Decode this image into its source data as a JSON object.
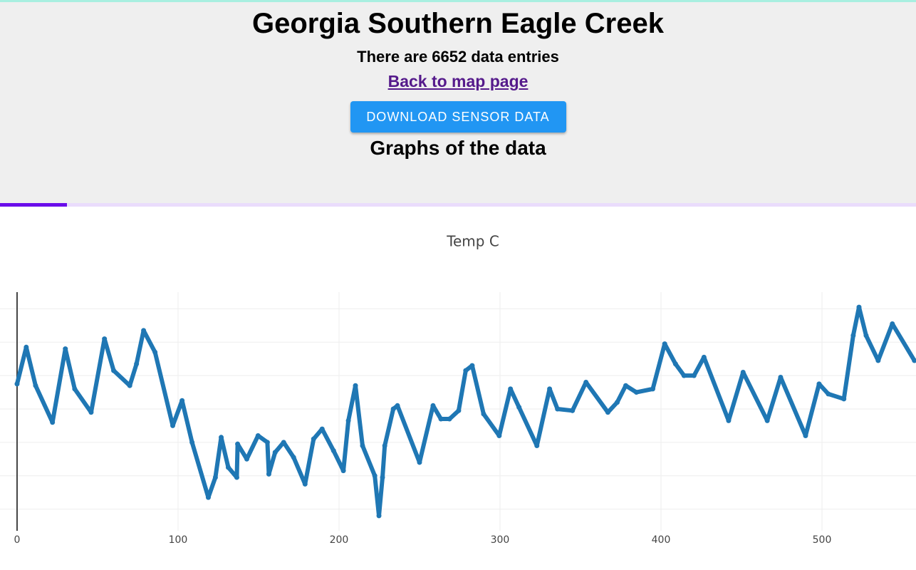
{
  "header": {
    "title": "Georgia Southern Eagle Creek",
    "entries": "There are 6652 data entries",
    "link": "Back to map page",
    "button": "DOWNLOAD SENSOR DATA",
    "graphs_heading": "Graphs of the data"
  },
  "chart_data": {
    "type": "line",
    "title": "Temp C",
    "x": [
      0,
      5.7,
      11.5,
      22,
      30,
      35.8,
      46,
      54.3,
      60,
      70,
      74.2,
      78.6,
      85.7,
      96.7,
      102.5,
      108.7,
      118.8,
      123.2,
      126.8,
      131.2,
      136.5,
      137,
      142.7,
      149.7,
      155.5,
      156.4,
      160.3,
      165.6,
      171.8,
      178.9,
      184.2,
      189.5,
      196.6,
      202.7,
      205.8,
      210.2,
      214.6,
      222.2,
      224.8,
      227,
      228.4,
      233.7,
      236.3,
      250,
      258.4,
      263.3,
      268.6,
      274.3,
      278.7,
      282.7,
      289.8,
      299.5,
      306.5,
      311.8,
      322.9,
      330.8,
      335.7,
      345,
      353.4,
      367,
      372.8,
      378.1,
      384.7,
      394.9,
      402.3,
      409,
      414.3,
      420.5,
      426.7,
      442,
      451,
      466,
      474.3,
      489.8,
      498.2,
      503.9,
      513.6,
      519.4,
      523,
      527.4,
      534.9,
      543.7,
      557.4
    ],
    "series": [
      {
        "name": "Temp C",
        "color": "#1f77b4",
        "values": [
          21.5,
          23.7,
          21.4,
          19.2,
          23.6,
          21.2,
          19.8,
          24.2,
          22.3,
          21.4,
          22.7,
          24.7,
          23.4,
          19.0,
          20.5,
          18.0,
          14.7,
          15.9,
          18.3,
          16.5,
          15.9,
          17.9,
          17.0,
          18.4,
          18.0,
          16.1,
          17.4,
          18.0,
          17.1,
          15.5,
          18.2,
          18.8,
          17.5,
          16.3,
          19.3,
          21.4,
          17.8,
          16.0,
          13.6,
          15.9,
          17.8,
          20.0,
          20.2,
          16.8,
          20.2,
          19.4,
          19.4,
          19.9,
          22.3,
          22.6,
          19.7,
          18.4,
          21.2,
          20.1,
          17.8,
          21.2,
          20.0,
          19.9,
          21.6,
          19.8,
          20.4,
          21.4,
          21.0,
          21.2,
          23.9,
          22.7,
          22.0,
          22.0,
          23.1,
          19.3,
          22.2,
          19.3,
          21.9,
          18.4,
          21.5,
          20.9,
          20.6,
          24.4,
          26.1,
          24.4,
          22.9,
          25.1,
          22.9
        ]
      }
    ],
    "xlim": [
      -10.6,
      558.4
    ],
    "xticks": [
      0,
      100,
      200,
      300,
      400,
      500
    ],
    "ylim": [
      12.7,
      27.0
    ],
    "yticks": [
      14,
      16,
      18,
      20,
      22,
      24,
      26
    ],
    "grid": true
  }
}
